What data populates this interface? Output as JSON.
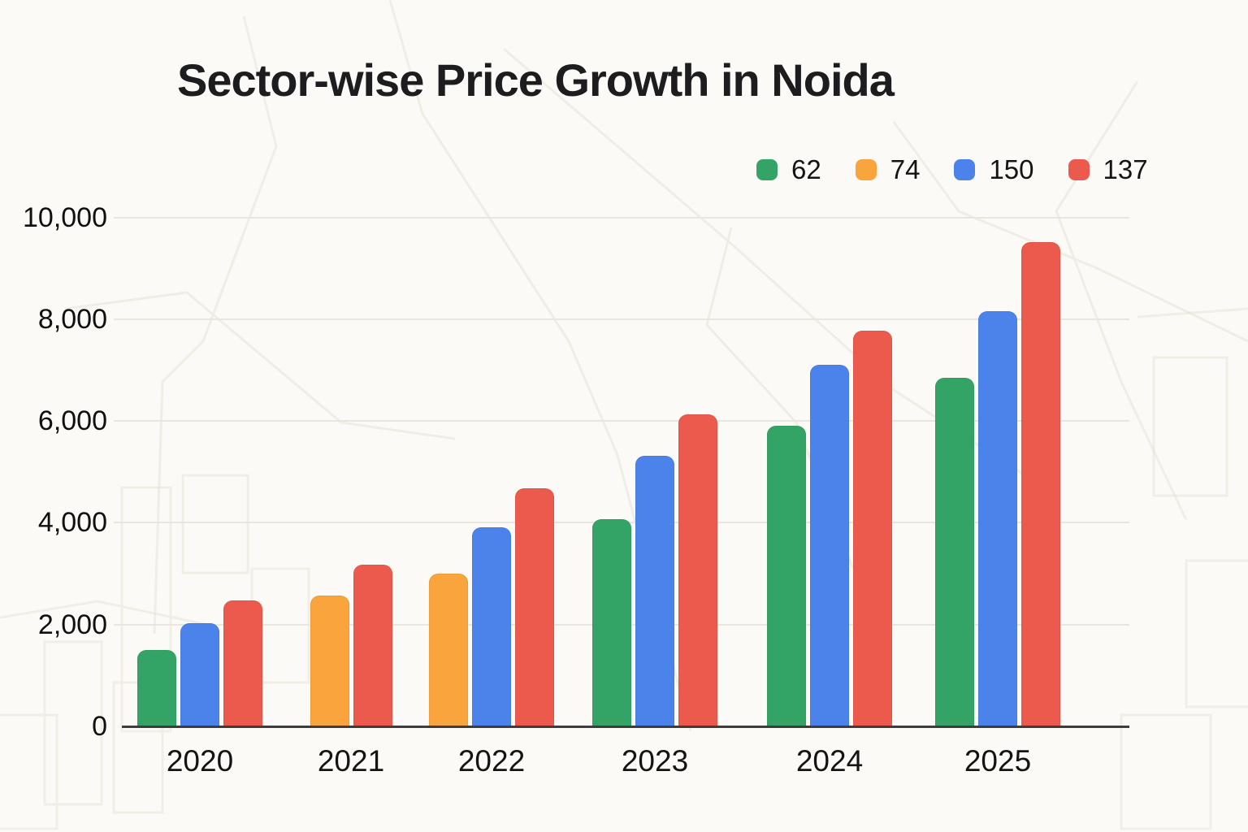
{
  "title": "Sector-wise Price Growth in Noida",
  "legend": [
    {
      "label": "62",
      "color": "#34a466"
    },
    {
      "label": "74",
      "color": "#f9a43d"
    },
    {
      "label": "150",
      "color": "#4c83ea"
    },
    {
      "label": "137",
      "color": "#eb5a4d"
    }
  ],
  "colors": {
    "background": "#fbfaf7",
    "gridline": "#e9e6e0",
    "axis": "#3d3d3d",
    "text": "#141414"
  },
  "chart_data": {
    "type": "bar",
    "title": "Sector-wise Price Growth in Noida",
    "categories": [
      "2020",
      "2021",
      "2022",
      "2023",
      "2024",
      "2025"
    ],
    "series": [
      {
        "name": "62",
        "color": "#34a466",
        "values": [
          1500,
          null,
          null,
          4070,
          5910,
          6840
        ]
      },
      {
        "name": "74",
        "color": "#f9a43d",
        "values": [
          null,
          2570,
          3000,
          null,
          null,
          null
        ]
      },
      {
        "name": "150",
        "color": "#4c83ea",
        "values": [
          2030,
          null,
          3910,
          5320,
          7100,
          8150
        ]
      },
      {
        "name": "137",
        "color": "#eb5a4d",
        "values": [
          2480,
          3170,
          4670,
          6130,
          7770,
          9510
        ]
      }
    ],
    "ylim": [
      0,
      10000
    ],
    "yticks": [
      0,
      2000,
      4000,
      6000,
      8000,
      10000
    ],
    "ytick_labels": [
      "0",
      "2,000",
      "4,000",
      "6,000",
      "8,000",
      "10,000"
    ],
    "xlabel": "",
    "ylabel": "",
    "grid": true,
    "legend_position": "top-right"
  }
}
